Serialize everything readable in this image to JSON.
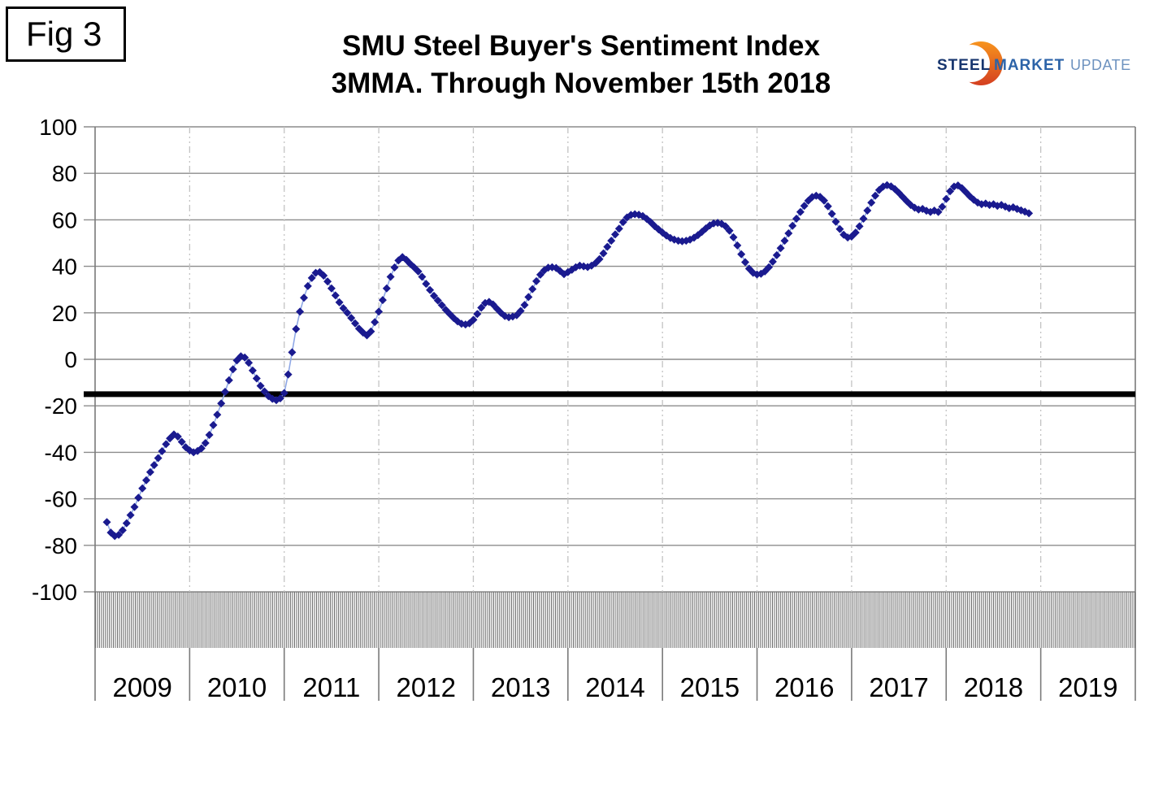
{
  "figure": {
    "label": "Fig 3"
  },
  "logo": {
    "steel": "STEEL",
    "market": "MARKET",
    "update": "UPDATE",
    "steel_color": "#17356E",
    "market_color": "#2C63A8",
    "update_color": "#6D92BF",
    "crescent_top_color": "#F7941E",
    "crescent_bottom_color": "#D43F20"
  },
  "chart_data": {
    "type": "scatter",
    "title": "SMU Steel Buyer's Sentiment Index",
    "subtitle": "3MMA. Through November 15th 2018",
    "xlabel": "",
    "ylabel": "",
    "xlim": [
      2009,
      2020
    ],
    "ylim": [
      -100,
      100
    ],
    "y_ticks": [
      100,
      80,
      60,
      40,
      20,
      0,
      -20,
      -40,
      -60,
      -80,
      -100
    ],
    "x_years": [
      "2009",
      "2010",
      "2011",
      "2012",
      "2013",
      "2014",
      "2015",
      "2016",
      "2017",
      "2018",
      "2019"
    ],
    "grid": {
      "horizontal": "solid",
      "vertical": "dash-dot yearly",
      "h_interval": 20
    },
    "grid_color": "#8C8C8C",
    "year_grid_color": "#C3C3C3",
    "axis_color": "#7A7A7A",
    "minor_tick_color": "#6A6A6A",
    "reference_line": {
      "value": -15,
      "color": "#000000",
      "width": 7
    },
    "legend": "none",
    "series": [
      {
        "name": "SMU Steel Buyer's Sentiment Index (3MMA)",
        "marker": "diamond",
        "marker_color": "#1A1A8F",
        "line_color": "#8FA8E6",
        "x_start_year": 2009.125,
        "x_step_years": 0.0416667,
        "values": [
          -70,
          -74.5,
          -76,
          -75.5,
          -73.5,
          -70.5,
          -67,
          -63.5,
          -59.5,
          -55.5,
          -52,
          -48.5,
          -45.5,
          -42.5,
          -39.5,
          -36.5,
          -34,
          -32.3,
          -33.2,
          -35.5,
          -37.8,
          -39.2,
          -40,
          -39.4,
          -38.3,
          -36,
          -32.5,
          -28.3,
          -23.8,
          -19,
          -14,
          -9,
          -4.3,
          -0.5,
          1.3,
          0.8,
          -1.5,
          -4.8,
          -8.2,
          -11.4,
          -13.8,
          -15.8,
          -17,
          -17.6,
          -16.8,
          -14.5,
          -6.5,
          3,
          13,
          20.5,
          26.5,
          31.5,
          35,
          37.2,
          37.5,
          36,
          33.5,
          30.5,
          27.5,
          24.5,
          22,
          20,
          17.8,
          15.5,
          13.2,
          11.5,
          10.3,
          12,
          16,
          20.5,
          25.5,
          30.5,
          35.5,
          39.5,
          42.5,
          44,
          42.8,
          41,
          39.5,
          37.8,
          35.5,
          32.5,
          29.8,
          27.3,
          25.3,
          23.3,
          21.3,
          19.5,
          17.8,
          16.3,
          15.3,
          15,
          15.5,
          17,
          19.5,
          22.2,
          24.2,
          24.7,
          23.6,
          21.8,
          20,
          18.6,
          18.1,
          18.4,
          19,
          20.8,
          23.4,
          26.8,
          30.2,
          33.6,
          36.4,
          38.3,
          39.4,
          39.6,
          39.3,
          38,
          36.6,
          37.5,
          38.5,
          39.6,
          40.3,
          40,
          39.7,
          40.3,
          41.4,
          43.1,
          45.6,
          48.4,
          51,
          53.7,
          56.2,
          59,
          61,
          62.1,
          62.4,
          62.2,
          61.6,
          60.4,
          59,
          57.3,
          55.9,
          54.5,
          53.2,
          52.2,
          51.5,
          51,
          50.8,
          51,
          51.5,
          52.3,
          53.4,
          54.8,
          56.3,
          57.6,
          58.5,
          58.7,
          58.3,
          57.2,
          55.3,
          52.5,
          49,
          45.2,
          41.8,
          39,
          37.2,
          36.5,
          36.8,
          37.8,
          39.6,
          42,
          44.8,
          47.8,
          51,
          54.2,
          57.4,
          60.5,
          63.4,
          66,
          68.2,
          69.8,
          70.4,
          69.9,
          68.3,
          65.8,
          62.6,
          59.2,
          56,
          53.6,
          52.4,
          52.8,
          54.5,
          57.2,
          60.5,
          64,
          67.4,
          70.4,
          72.8,
          74.3,
          74.9,
          74.4,
          73.2,
          71.6,
          69.8,
          68,
          66.4,
          65.2,
          64.4,
          64.7,
          63.9,
          63.4,
          64,
          63.4,
          65.6,
          69,
          72.3,
          74.3,
          74.8,
          73.6,
          71.9,
          70.1,
          68.6,
          67.4,
          66.7,
          67,
          66.4,
          66.7,
          66,
          66.4,
          65.7,
          65,
          65.4,
          64.7,
          64.1,
          63.5,
          62.8
        ]
      }
    ]
  }
}
